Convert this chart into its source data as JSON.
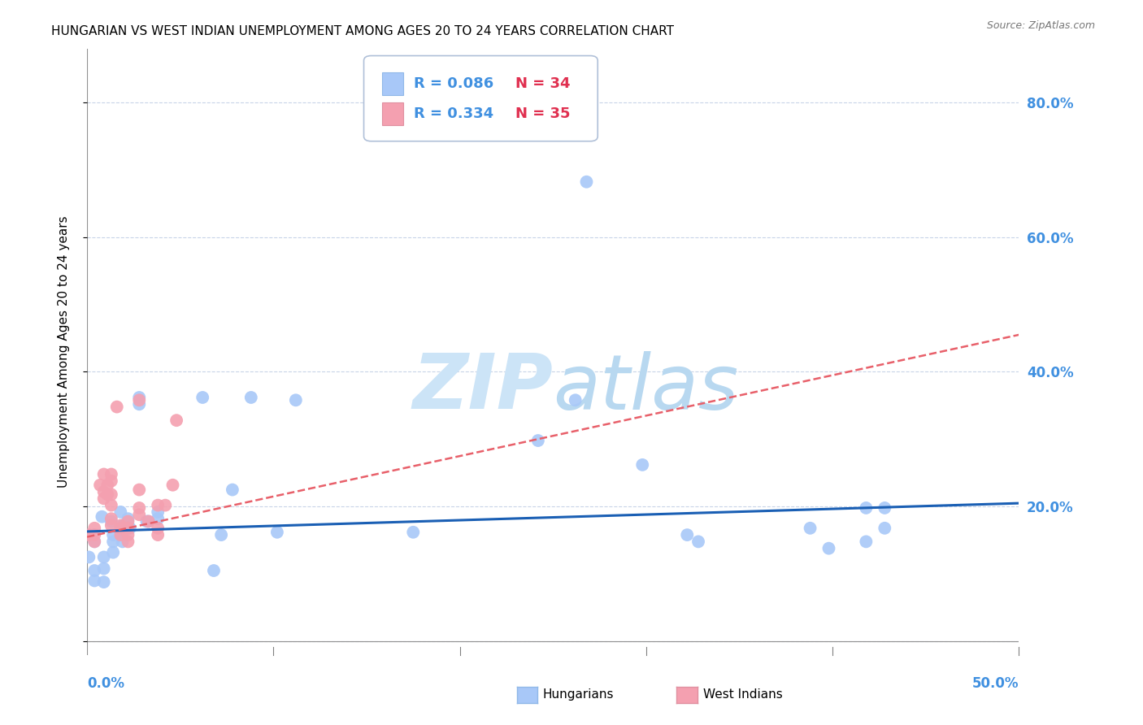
{
  "title": "HUNGARIAN VS WEST INDIAN UNEMPLOYMENT AMONG AGES 20 TO 24 YEARS CORRELATION CHART",
  "source": "Source: ZipAtlas.com",
  "ylabel": "Unemployment Among Ages 20 to 24 years",
  "xlim": [
    0.0,
    0.5
  ],
  "ylim": [
    -0.02,
    0.88
  ],
  "ytick_values": [
    0.0,
    0.2,
    0.4,
    0.6,
    0.8
  ],
  "right_ytick_values": [
    0.2,
    0.4,
    0.6,
    0.8
  ],
  "hungarian_color": "#a8c8f8",
  "westindian_color": "#f4a0b0",
  "hungarian_line_color": "#1a5fb4",
  "westindian_line_color": "#e8606a",
  "background_color": "#ffffff",
  "watermark_color": "#cce4f7",
  "grid_color": "#c8d4e8",
  "hungarian_scatter": [
    [
      0.001,
      0.125
    ],
    [
      0.004,
      0.148
    ],
    [
      0.004,
      0.105
    ],
    [
      0.004,
      0.09
    ],
    [
      0.008,
      0.185
    ],
    [
      0.009,
      0.125
    ],
    [
      0.009,
      0.108
    ],
    [
      0.009,
      0.088
    ],
    [
      0.013,
      0.178
    ],
    [
      0.014,
      0.158
    ],
    [
      0.014,
      0.148
    ],
    [
      0.014,
      0.132
    ],
    [
      0.018,
      0.192
    ],
    [
      0.019,
      0.172
    ],
    [
      0.019,
      0.158
    ],
    [
      0.019,
      0.148
    ],
    [
      0.022,
      0.182
    ],
    [
      0.023,
      0.168
    ],
    [
      0.028,
      0.362
    ],
    [
      0.028,
      0.352
    ],
    [
      0.032,
      0.178
    ],
    [
      0.033,
      0.178
    ],
    [
      0.038,
      0.192
    ],
    [
      0.038,
      0.182
    ],
    [
      0.062,
      0.362
    ],
    [
      0.068,
      0.105
    ],
    [
      0.072,
      0.158
    ],
    [
      0.078,
      0.225
    ],
    [
      0.088,
      0.362
    ],
    [
      0.102,
      0.162
    ],
    [
      0.112,
      0.358
    ],
    [
      0.175,
      0.162
    ],
    [
      0.242,
      0.298
    ],
    [
      0.262,
      0.358
    ],
    [
      0.268,
      0.682
    ],
    [
      0.298,
      0.262
    ],
    [
      0.322,
      0.158
    ],
    [
      0.328,
      0.148
    ],
    [
      0.388,
      0.168
    ],
    [
      0.398,
      0.138
    ],
    [
      0.418,
      0.198
    ],
    [
      0.418,
      0.148
    ],
    [
      0.428,
      0.198
    ],
    [
      0.428,
      0.168
    ]
  ],
  "westindian_scatter": [
    [
      0.001,
      0.158
    ],
    [
      0.004,
      0.168
    ],
    [
      0.004,
      0.158
    ],
    [
      0.004,
      0.148
    ],
    [
      0.007,
      0.232
    ],
    [
      0.009,
      0.248
    ],
    [
      0.009,
      0.222
    ],
    [
      0.009,
      0.212
    ],
    [
      0.011,
      0.232
    ],
    [
      0.011,
      0.218
    ],
    [
      0.013,
      0.248
    ],
    [
      0.013,
      0.238
    ],
    [
      0.013,
      0.218
    ],
    [
      0.013,
      0.202
    ],
    [
      0.013,
      0.182
    ],
    [
      0.013,
      0.172
    ],
    [
      0.016,
      0.348
    ],
    [
      0.018,
      0.172
    ],
    [
      0.018,
      0.168
    ],
    [
      0.018,
      0.158
    ],
    [
      0.022,
      0.178
    ],
    [
      0.022,
      0.168
    ],
    [
      0.022,
      0.158
    ],
    [
      0.022,
      0.148
    ],
    [
      0.028,
      0.358
    ],
    [
      0.028,
      0.225
    ],
    [
      0.028,
      0.198
    ],
    [
      0.028,
      0.188
    ],
    [
      0.033,
      0.178
    ],
    [
      0.038,
      0.168
    ],
    [
      0.038,
      0.158
    ],
    [
      0.038,
      0.202
    ],
    [
      0.042,
      0.202
    ],
    [
      0.046,
      0.232
    ],
    [
      0.048,
      0.328
    ]
  ],
  "hungarian_trendline": {
    "x_start": 0.0,
    "x_end": 0.5,
    "y_start": 0.163,
    "y_end": 0.205
  },
  "westindian_trendline": {
    "x_start": 0.0,
    "x_end": 0.5,
    "y_start": 0.155,
    "y_end": 0.455
  },
  "title_fontsize": 11,
  "axis_label_fontsize": 10,
  "tick_fontsize": 11,
  "legend_fontsize": 13
}
